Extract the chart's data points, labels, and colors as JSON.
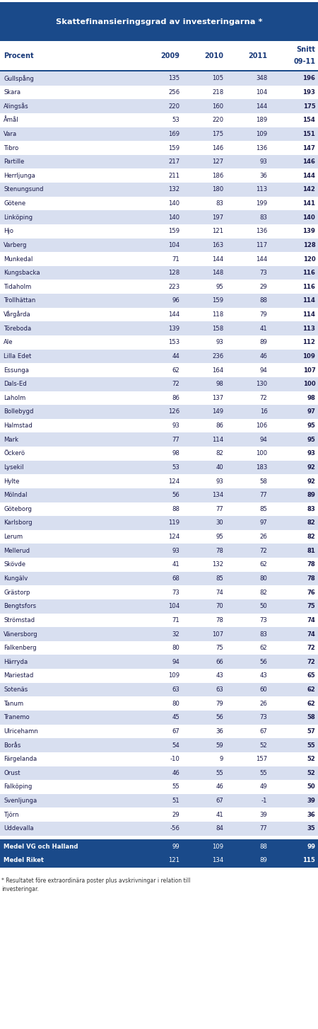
{
  "title": "Skattefinansieringsgrad av investeringarna *",
  "col_header": [
    "Procent",
    "2009",
    "2010",
    "2011",
    "Snitt\n09-11"
  ],
  "rows": [
    [
      "Gullspång",
      135,
      105,
      348,
      196
    ],
    [
      "Skara",
      256,
      218,
      104,
      193
    ],
    [
      "Alingsås",
      220,
      160,
      144,
      175
    ],
    [
      "Åmål",
      53,
      220,
      189,
      154
    ],
    [
      "Vara",
      169,
      175,
      109,
      151
    ],
    [
      "Tibro",
      159,
      146,
      136,
      147
    ],
    [
      "Partille",
      217,
      127,
      93,
      146
    ],
    [
      "Herrljunga",
      211,
      186,
      36,
      144
    ],
    [
      "Stenungsund",
      132,
      180,
      113,
      142
    ],
    [
      "Götene",
      140,
      83,
      199,
      141
    ],
    [
      "Linköping",
      140,
      197,
      83,
      140
    ],
    [
      "Hjo",
      159,
      121,
      136,
      139
    ],
    [
      "Varberg",
      104,
      163,
      117,
      128
    ],
    [
      "Munkedal",
      71,
      144,
      144,
      120
    ],
    [
      "Kungsbacka",
      128,
      148,
      73,
      116
    ],
    [
      "Tidaholm",
      223,
      95,
      29,
      116
    ],
    [
      "Trollhättan",
      96,
      159,
      88,
      114
    ],
    [
      "Vårgårda",
      144,
      118,
      79,
      114
    ],
    [
      "Töreboda",
      139,
      158,
      41,
      113
    ],
    [
      "Ale",
      153,
      93,
      89,
      112
    ],
    [
      "Lilla Edet",
      44,
      236,
      46,
      109
    ],
    [
      "Essunga",
      62,
      164,
      94,
      107
    ],
    [
      "Dals-Ed",
      72,
      98,
      130,
      100
    ],
    [
      "Laholm",
      86,
      137,
      72,
      98
    ],
    [
      "Bollebygd",
      126,
      149,
      16,
      97
    ],
    [
      "Halmstad",
      93,
      86,
      106,
      95
    ],
    [
      "Mark",
      77,
      114,
      94,
      95
    ],
    [
      "Öckerö",
      98,
      82,
      100,
      93
    ],
    [
      "Lysekil",
      53,
      40,
      183,
      92
    ],
    [
      "Hylte",
      124,
      93,
      58,
      92
    ],
    [
      "Mölndal",
      56,
      134,
      77,
      89
    ],
    [
      "Göteborg",
      88,
      77,
      85,
      83
    ],
    [
      "Karlsborg",
      119,
      30,
      97,
      82
    ],
    [
      "Lerum",
      124,
      95,
      26,
      82
    ],
    [
      "Mellerud",
      93,
      78,
      72,
      81
    ],
    [
      "Skövde",
      41,
      132,
      62,
      78
    ],
    [
      "Kungälv",
      68,
      85,
      80,
      78
    ],
    [
      "Grästorp",
      73,
      74,
      82,
      76
    ],
    [
      "Bengtsfors",
      104,
      70,
      50,
      75
    ],
    [
      "Strömstad",
      71,
      78,
      73,
      74
    ],
    [
      "Vänersborg",
      32,
      107,
      83,
      74
    ],
    [
      "Falkenberg",
      80,
      75,
      62,
      72
    ],
    [
      "Härryda",
      94,
      66,
      56,
      72
    ],
    [
      "Mariestad",
      109,
      43,
      43,
      65
    ],
    [
      "Sotenäs",
      63,
      63,
      60,
      62
    ],
    [
      "Tanum",
      80,
      79,
      26,
      62
    ],
    [
      "Tranemo",
      45,
      56,
      73,
      58
    ],
    [
      "Ulricehamn",
      67,
      36,
      67,
      57
    ],
    [
      "Borås",
      54,
      59,
      52,
      55
    ],
    [
      "Färgelanda",
      -10,
      9,
      157,
      52
    ],
    [
      "Orust",
      46,
      55,
      55,
      52
    ],
    [
      "Falköping",
      55,
      46,
      49,
      50
    ],
    [
      "Svenljunga",
      51,
      67,
      -1,
      39
    ],
    [
      "Tjörn",
      29,
      41,
      39,
      36
    ],
    [
      "Uddevalla",
      -56,
      84,
      77,
      35
    ],
    [
      "Medel VG och Halland",
      99,
      109,
      88,
      99
    ],
    [
      "Medel Riket",
      121,
      134,
      89,
      115
    ]
  ],
  "header_bg": "#1a4a8a",
  "header_text": "#ffffff",
  "row_bg_even": "#d8dff0",
  "row_bg_odd": "#ffffff",
  "row_text": "#1a1a4a",
  "footer_text": "* Resultatet före extraordinära poster plus avskrivningar i relation till\ninvesteringar.",
  "medel_bg": "#1a4a8a",
  "medel_text": "#ffffff",
  "col_header_text": "#1a3a7a"
}
